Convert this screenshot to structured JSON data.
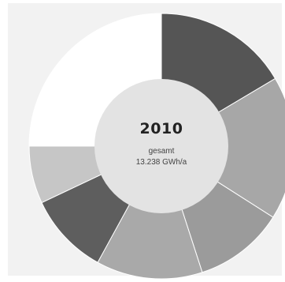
{
  "chart_data": {
    "type": "pie",
    "variant": "donut",
    "center": {
      "year": "2010",
      "label": "gesamt",
      "total": "13.238 GWh/a"
    },
    "slices": [
      {
        "value": 16.5,
        "color": "#555555"
      },
      {
        "value": 17.5,
        "color": "#a7a7a7"
      },
      {
        "value": 11.0,
        "color": "#9b9b9b"
      },
      {
        "value": 13.0,
        "color": "#a9a9a9"
      },
      {
        "value": 10.0,
        "color": "#5e5e5e"
      },
      {
        "value": 7.0,
        "color": "#c6c6c6"
      },
      {
        "value": 25.0,
        "color": "#ffffff"
      }
    ],
    "inner_color": "#e3e3e3",
    "backdrop_color": "#f2f2f2",
    "legend": "none"
  }
}
